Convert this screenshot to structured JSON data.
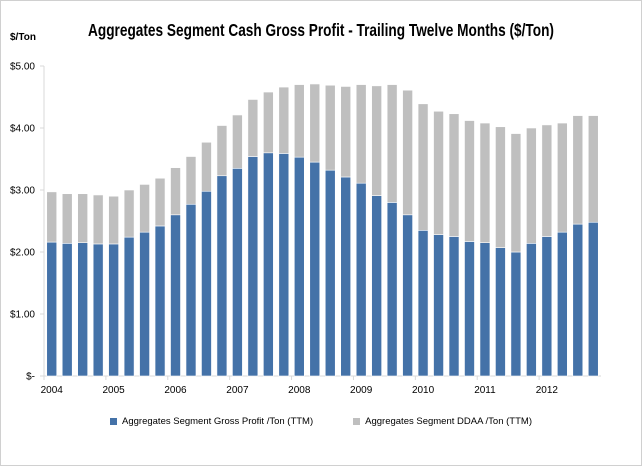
{
  "chart_data": {
    "type": "bar",
    "stacked": true,
    "title": "Aggregates Segment Cash Gross Profit - Trailing Twelve Months ($/Ton)",
    "ylabel": "$/Ton",
    "xlabel": "",
    "ylim": [
      0,
      5
    ],
    "yticks": [
      "$-",
      "$1.00",
      "$2.00",
      "$3.00",
      "$4.00",
      "$5.00"
    ],
    "xtick_labels": [
      "2004",
      "2005",
      "2006",
      "2007",
      "2008",
      "2009",
      "2010",
      "2011",
      "2012"
    ],
    "categories": [
      "2004Q1",
      "2004Q2",
      "2004Q3",
      "2004Q4",
      "2005Q1",
      "2005Q2",
      "2005Q3",
      "2005Q4",
      "2006Q1",
      "2006Q2",
      "2006Q3",
      "2006Q4",
      "2007Q1",
      "2007Q2",
      "2007Q3",
      "2007Q4",
      "2008Q1",
      "2008Q2",
      "2008Q3",
      "2008Q4",
      "2009Q1",
      "2009Q2",
      "2009Q3",
      "2009Q4",
      "2010Q1",
      "2010Q2",
      "2010Q3",
      "2010Q4",
      "2011Q1",
      "2011Q2",
      "2011Q3",
      "2011Q4",
      "2012Q1",
      "2012Q2",
      "2012Q3",
      "2012Q4"
    ],
    "series": [
      {
        "name": "Aggregates Segment Gross Profit /Ton (TTM)",
        "color": "#4472a8",
        "values": [
          2.16,
          2.14,
          2.15,
          2.13,
          2.13,
          2.24,
          2.32,
          2.42,
          2.6,
          2.77,
          2.98,
          3.23,
          3.35,
          3.54,
          3.6,
          3.59,
          3.53,
          3.45,
          3.32,
          3.21,
          3.11,
          2.91,
          2.8,
          2.6,
          2.35,
          2.28,
          2.25,
          2.17,
          2.15,
          2.07,
          2.0,
          2.14,
          2.25,
          2.32,
          2.45,
          2.48
        ]
      },
      {
        "name": "Aggregates Segment DDAA /Ton (TTM)",
        "color": "#bfbfbf",
        "values": [
          0.81,
          0.8,
          0.79,
          0.79,
          0.77,
          0.76,
          0.77,
          0.77,
          0.76,
          0.77,
          0.79,
          0.81,
          0.86,
          0.92,
          0.98,
          1.07,
          1.17,
          1.26,
          1.37,
          1.46,
          1.59,
          1.77,
          1.9,
          2.01,
          2.04,
          1.99,
          1.98,
          1.95,
          1.93,
          1.95,
          1.91,
          1.86,
          1.8,
          1.76,
          1.75,
          1.72
        ]
      }
    ],
    "legend": "bottom",
    "grid": false
  }
}
